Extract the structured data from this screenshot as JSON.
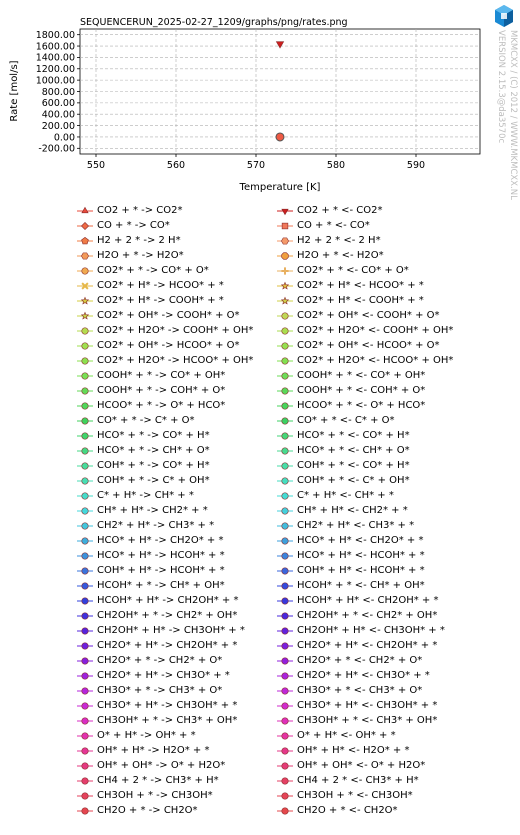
{
  "title": "SEQUENCERUN_2025-02-27_1209/graphs/png/rates.png",
  "branding": {
    "line1": "MKMCXX / (C) 2012 / WWW.MKMCXX.NL",
    "line2": "VERSION 2.15.3@da3570c"
  },
  "chart_data": {
    "type": "scatter",
    "title": "SEQUENCERUN_2025-02-27_1209/graphs/png/rates.png",
    "xlabel": "Temperature [K]",
    "ylabel": "Rate [mol/s]",
    "xlim": [
      548,
      598
    ],
    "ylim": [
      -300,
      1900
    ],
    "xticks": [
      550,
      560,
      570,
      580,
      590
    ],
    "xtick_labels": [
      "550",
      "560",
      "570",
      "580",
      "590"
    ],
    "yticks": [
      -200,
      0,
      200,
      400,
      600,
      800,
      1000,
      1200,
      1400,
      1600,
      1800
    ],
    "ytick_labels": [
      "-200.00",
      "0.00",
      "200.00",
      "400.00",
      "600.00",
      "800.00",
      "1000.00",
      "1200.00",
      "1400.00",
      "1600.00",
      "1800.00"
    ],
    "grid": true,
    "legend_position": "below",
    "points": [
      {
        "series": "CO2 + * <- CO2*",
        "x": 573,
        "y": 1640,
        "color": "#cc1e1e",
        "marker": "triangle-down"
      },
      {
        "series": "CO2 + * -> CO2*",
        "x": 573,
        "y": 0,
        "color": "#ee5a44",
        "marker": "circle"
      }
    ],
    "series": [
      {
        "name": "CO2 + * -> CO2*",
        "color": "#e8493a",
        "marker": "triangle-up"
      },
      {
        "name": "CO2 + * <- CO2*",
        "color": "#cc1e1e",
        "marker": "triangle-down"
      },
      {
        "name": "CO + * -> CO*",
        "color": "#ee6a45",
        "marker": "diamond"
      },
      {
        "name": "CO + * <- CO*",
        "color": "#f0785a",
        "marker": "square"
      },
      {
        "name": "H2 + 2 * -> 2 H*",
        "color": "#f07c46",
        "marker": "pentagon"
      },
      {
        "name": "H2 + 2 * <- 2 H*",
        "color": "#f49a6a",
        "marker": "hexagon"
      },
      {
        "name": "H2O + * -> H2O*",
        "color": "#f29a5a",
        "marker": "hexagon"
      },
      {
        "name": "H2O + * <- H2O*",
        "color": "#f0a040",
        "marker": "octagon"
      },
      {
        "name": "CO2* + * -> CO* + O*",
        "color": "#f0aa50",
        "marker": "circle"
      },
      {
        "name": "CO2* + * <- CO* + O*",
        "color": "#e8b060",
        "marker": "plus"
      },
      {
        "name": "CO2* + H* -> HCOO* + *",
        "color": "#e6b84a",
        "marker": "x"
      },
      {
        "name": "CO2* + H* <- HCOO* + *",
        "color": "#e0c040",
        "marker": "star"
      },
      {
        "name": "CO2* + H* -> COOH* + *",
        "color": "#d6cc40",
        "marker": "star"
      },
      {
        "name": "CO2* + H* <- COOH* + *",
        "color": "#cfd048",
        "marker": "star"
      },
      {
        "name": "CO2* + OH* -> COOH* + O*",
        "color": "#c8d448",
        "marker": "star"
      },
      {
        "name": "CO2* + OH* <- COOH* + O*",
        "color": "#c0d856",
        "marker": "circle"
      },
      {
        "name": "CO2* + H2O* -> COOH* + OH*",
        "color": "#b4dc50",
        "marker": "circle"
      },
      {
        "name": "CO2* + H2O* <- COOH* + OH*",
        "color": "#aade50",
        "marker": "circle"
      },
      {
        "name": "CO2* + OH* -> HCOO* + O*",
        "color": "#a0e050",
        "marker": "circle"
      },
      {
        "name": "CO2* + OH* <- HCOO* + O*",
        "color": "#96e050",
        "marker": "circle"
      },
      {
        "name": "CO2* + H2O* -> HCOO* + OH*",
        "color": "#8ce050",
        "marker": "circle"
      },
      {
        "name": "CO2* + H2O* <- HCOO* + OH*",
        "color": "#82e052",
        "marker": "circle"
      },
      {
        "name": "COOH* + * -> CO* + OH*",
        "color": "#78e054",
        "marker": "circle"
      },
      {
        "name": "COOH* + * <- CO* + OH*",
        "color": "#6edc58",
        "marker": "circle"
      },
      {
        "name": "COOH* + * -> COH* + O*",
        "color": "#64da58",
        "marker": "circle"
      },
      {
        "name": "COOH* + * <- COH* + O*",
        "color": "#5ad85a",
        "marker": "circle"
      },
      {
        "name": "HCOO* + * -> O* + HCO*",
        "color": "#50d65a",
        "marker": "circle"
      },
      {
        "name": "HCOO* + * <- O* + HCO*",
        "color": "#48d45c",
        "marker": "circle"
      },
      {
        "name": "CO* + * -> C* + O*",
        "color": "#40d25e",
        "marker": "circle"
      },
      {
        "name": "CO* + * <- C* + O*",
        "color": "#3cd064",
        "marker": "circle"
      },
      {
        "name": "HCO* + * -> CO* + H*",
        "color": "#40d46c",
        "marker": "circle"
      },
      {
        "name": "HCO* + * <- CO* + H*",
        "color": "#46d678",
        "marker": "circle"
      },
      {
        "name": "HCO* + * -> CH* + O*",
        "color": "#46d884",
        "marker": "circle"
      },
      {
        "name": "HCO* + * <- CH* + O*",
        "color": "#48da90",
        "marker": "circle"
      },
      {
        "name": "COH* + * -> CO* + H*",
        "color": "#48dc9c",
        "marker": "circle"
      },
      {
        "name": "COH* + * <- CO* + H*",
        "color": "#48dea8",
        "marker": "circle"
      },
      {
        "name": "COH* + * -> C* + OH*",
        "color": "#48deb4",
        "marker": "circle"
      },
      {
        "name": "COH* + * <- C* + OH*",
        "color": "#46dec0",
        "marker": "circle"
      },
      {
        "name": "C* + H* -> CH* + *",
        "color": "#46dcca",
        "marker": "circle"
      },
      {
        "name": "C* + H* <- CH* + *",
        "color": "#44dcd4",
        "marker": "circle"
      },
      {
        "name": "CH* + H* -> CH2* + *",
        "color": "#44d8dc",
        "marker": "circle"
      },
      {
        "name": "CH* + H* <- CH2* + *",
        "color": "#44d0dc",
        "marker": "circle"
      },
      {
        "name": "CH2* + H* -> CH3* + *",
        "color": "#42c6dc",
        "marker": "circle"
      },
      {
        "name": "CH2* + H* <- CH3* + *",
        "color": "#42bcdc",
        "marker": "circle"
      },
      {
        "name": "HCO* + H* -> CH2O* + *",
        "color": "#3eaedc",
        "marker": "circle"
      },
      {
        "name": "HCO* + H* <- CH2O* + *",
        "color": "#3ea0dc",
        "marker": "circle"
      },
      {
        "name": "HCO* + H* -> HCOH* + *",
        "color": "#3c92dc",
        "marker": "circle"
      },
      {
        "name": "HCO* + H* <- HCOH* + *",
        "color": "#3c84dc",
        "marker": "circle"
      },
      {
        "name": "COH* + H* -> HCOH* + *",
        "color": "#3a74dc",
        "marker": "circle"
      },
      {
        "name": "COH* + H* <- HCOH* + *",
        "color": "#3a66dc",
        "marker": "circle"
      },
      {
        "name": "HCOH* + * -> CH* + OH*",
        "color": "#3658dc",
        "marker": "circle"
      },
      {
        "name": "HCOH* + * <- CH* + OH*",
        "color": "#344adc",
        "marker": "circle"
      },
      {
        "name": "HCOH* + H* -> CH2OH* + *",
        "color": "#3240dc",
        "marker": "circle"
      },
      {
        "name": "HCOH* + H* <- CH2OH* + *",
        "color": "#3838dc",
        "marker": "circle"
      },
      {
        "name": "CH2OH* + * -> CH2* + OH*",
        "color": "#4030dc",
        "marker": "circle"
      },
      {
        "name": "CH2OH* + * <- CH2* + OH*",
        "color": "#4a28dc",
        "marker": "circle"
      },
      {
        "name": "CH2OH* + H* -> CH3OH* + *",
        "color": "#5624dc",
        "marker": "circle"
      },
      {
        "name": "CH2OH* + H* <- CH3OH* + *",
        "color": "#6222dc",
        "marker": "circle"
      },
      {
        "name": "CH2O* + H* -> CH2OH* + *",
        "color": "#6e20dc",
        "marker": "circle"
      },
      {
        "name": "CH2O* + H* <- CH2OH* + *",
        "color": "#7a20dc",
        "marker": "circle"
      },
      {
        "name": "CH2O* + * -> CH2* + O*",
        "color": "#8620dc",
        "marker": "circle"
      },
      {
        "name": "CH2O* + * <- CH2* + O*",
        "color": "#9220dc",
        "marker": "circle"
      },
      {
        "name": "CH2O* + H* -> CH3O* + *",
        "color": "#9e22dc",
        "marker": "circle"
      },
      {
        "name": "CH2O* + H* <- CH3O* + *",
        "color": "#aa24dc",
        "marker": "circle"
      },
      {
        "name": "CH3O* + * -> CH3* + O*",
        "color": "#b426dc",
        "marker": "circle"
      },
      {
        "name": "CH3O* + * <- CH3* + O*",
        "color": "#be28d8",
        "marker": "circle"
      },
      {
        "name": "CH3O* + H* -> CH3OH* + *",
        "color": "#c82ad4",
        "marker": "circle"
      },
      {
        "name": "CH3O* + H* <- CH3OH* + *",
        "color": "#d02ccc",
        "marker": "circle"
      },
      {
        "name": "CH3OH* + * -> CH3* + OH*",
        "color": "#d82ec4",
        "marker": "circle"
      },
      {
        "name": "CH3OH* + * <- CH3* + OH*",
        "color": "#de30ba",
        "marker": "circle"
      },
      {
        "name": "O* + H* -> OH* + *",
        "color": "#e232ae",
        "marker": "circle"
      },
      {
        "name": "O* + H* <- OH* + *",
        "color": "#e434a2",
        "marker": "circle"
      },
      {
        "name": "OH* + H* -> H2O* + *",
        "color": "#e43696",
        "marker": "circle"
      },
      {
        "name": "OH* + H* <- H2O* + *",
        "color": "#e4388a",
        "marker": "circle"
      },
      {
        "name": "OH* + OH* -> O* + H2O*",
        "color": "#e43a80",
        "marker": "circle"
      },
      {
        "name": "OH* + OH* <- O* + H2O*",
        "color": "#e43c76",
        "marker": "circle"
      },
      {
        "name": "CH4 + 2 * -> CH3* + H*",
        "color": "#e43e6c",
        "marker": "circle"
      },
      {
        "name": "CH4 + 2 * <- CH3* + H*",
        "color": "#e44064",
        "marker": "circle"
      },
      {
        "name": "CH3OH + * -> CH3OH*",
        "color": "#e4425c",
        "marker": "circle"
      },
      {
        "name": "CH3OH + * <- CH3OH*",
        "color": "#e44456",
        "marker": "circle"
      },
      {
        "name": "CH2O + * -> CH2O*",
        "color": "#e44650",
        "marker": "circle"
      },
      {
        "name": "CH2O + * <- CH2O*",
        "color": "#e4484c",
        "marker": "circle"
      }
    ]
  }
}
